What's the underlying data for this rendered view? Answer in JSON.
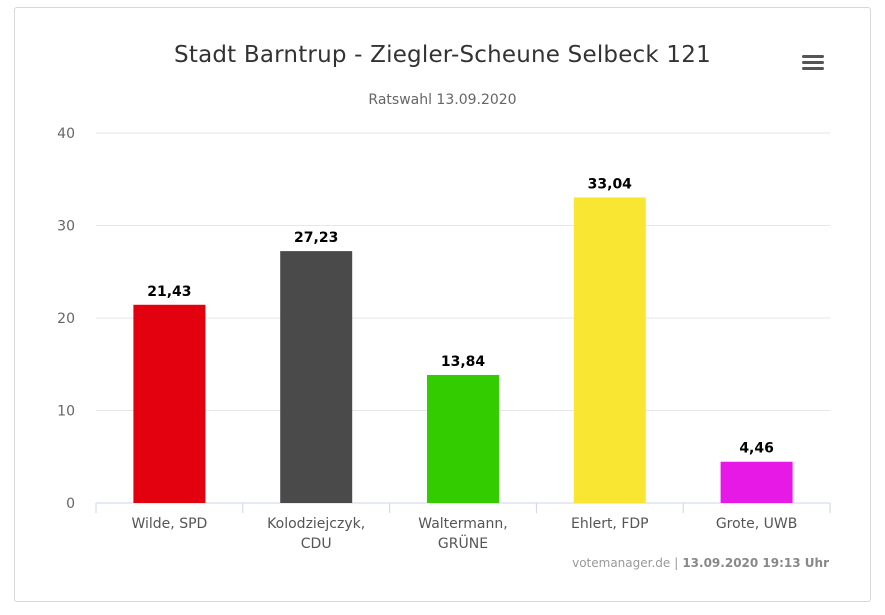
{
  "header": {
    "title": "Stadt Barntrup - Ziegler-Scheune Selbeck 121",
    "subtitle": "Ratswahl 13.09.2020",
    "menu_icon": "hamburger-menu-icon"
  },
  "footer": {
    "source": "votemanager.de",
    "separator": "|",
    "timestamp": "13.09.2020 19:13 Uhr"
  },
  "chart_data": {
    "type": "bar",
    "title": "Stadt Barntrup - Ziegler-Scheune Selbeck 121",
    "subtitle": "Ratswahl 13.09.2020",
    "categories": [
      [
        "Wilde, SPD"
      ],
      [
        "Kolodziejczyk,",
        "CDU"
      ],
      [
        "Waltermann,",
        "GRÜNE"
      ],
      [
        "Ehlert, FDP"
      ],
      [
        "Grote, UWB"
      ]
    ],
    "values": [
      21.43,
      27.23,
      13.84,
      33.04,
      4.46
    ],
    "value_labels": [
      "21,43",
      "27,23",
      "13,84",
      "33,04",
      "4,46"
    ],
    "colors": [
      "#e3000f",
      "#4a4a4a",
      "#33cc00",
      "#f9e632",
      "#e619e6"
    ],
    "ylim": [
      0,
      40
    ],
    "yticks": [
      0,
      10,
      20,
      30,
      40
    ],
    "grid": true,
    "legend": "none"
  }
}
